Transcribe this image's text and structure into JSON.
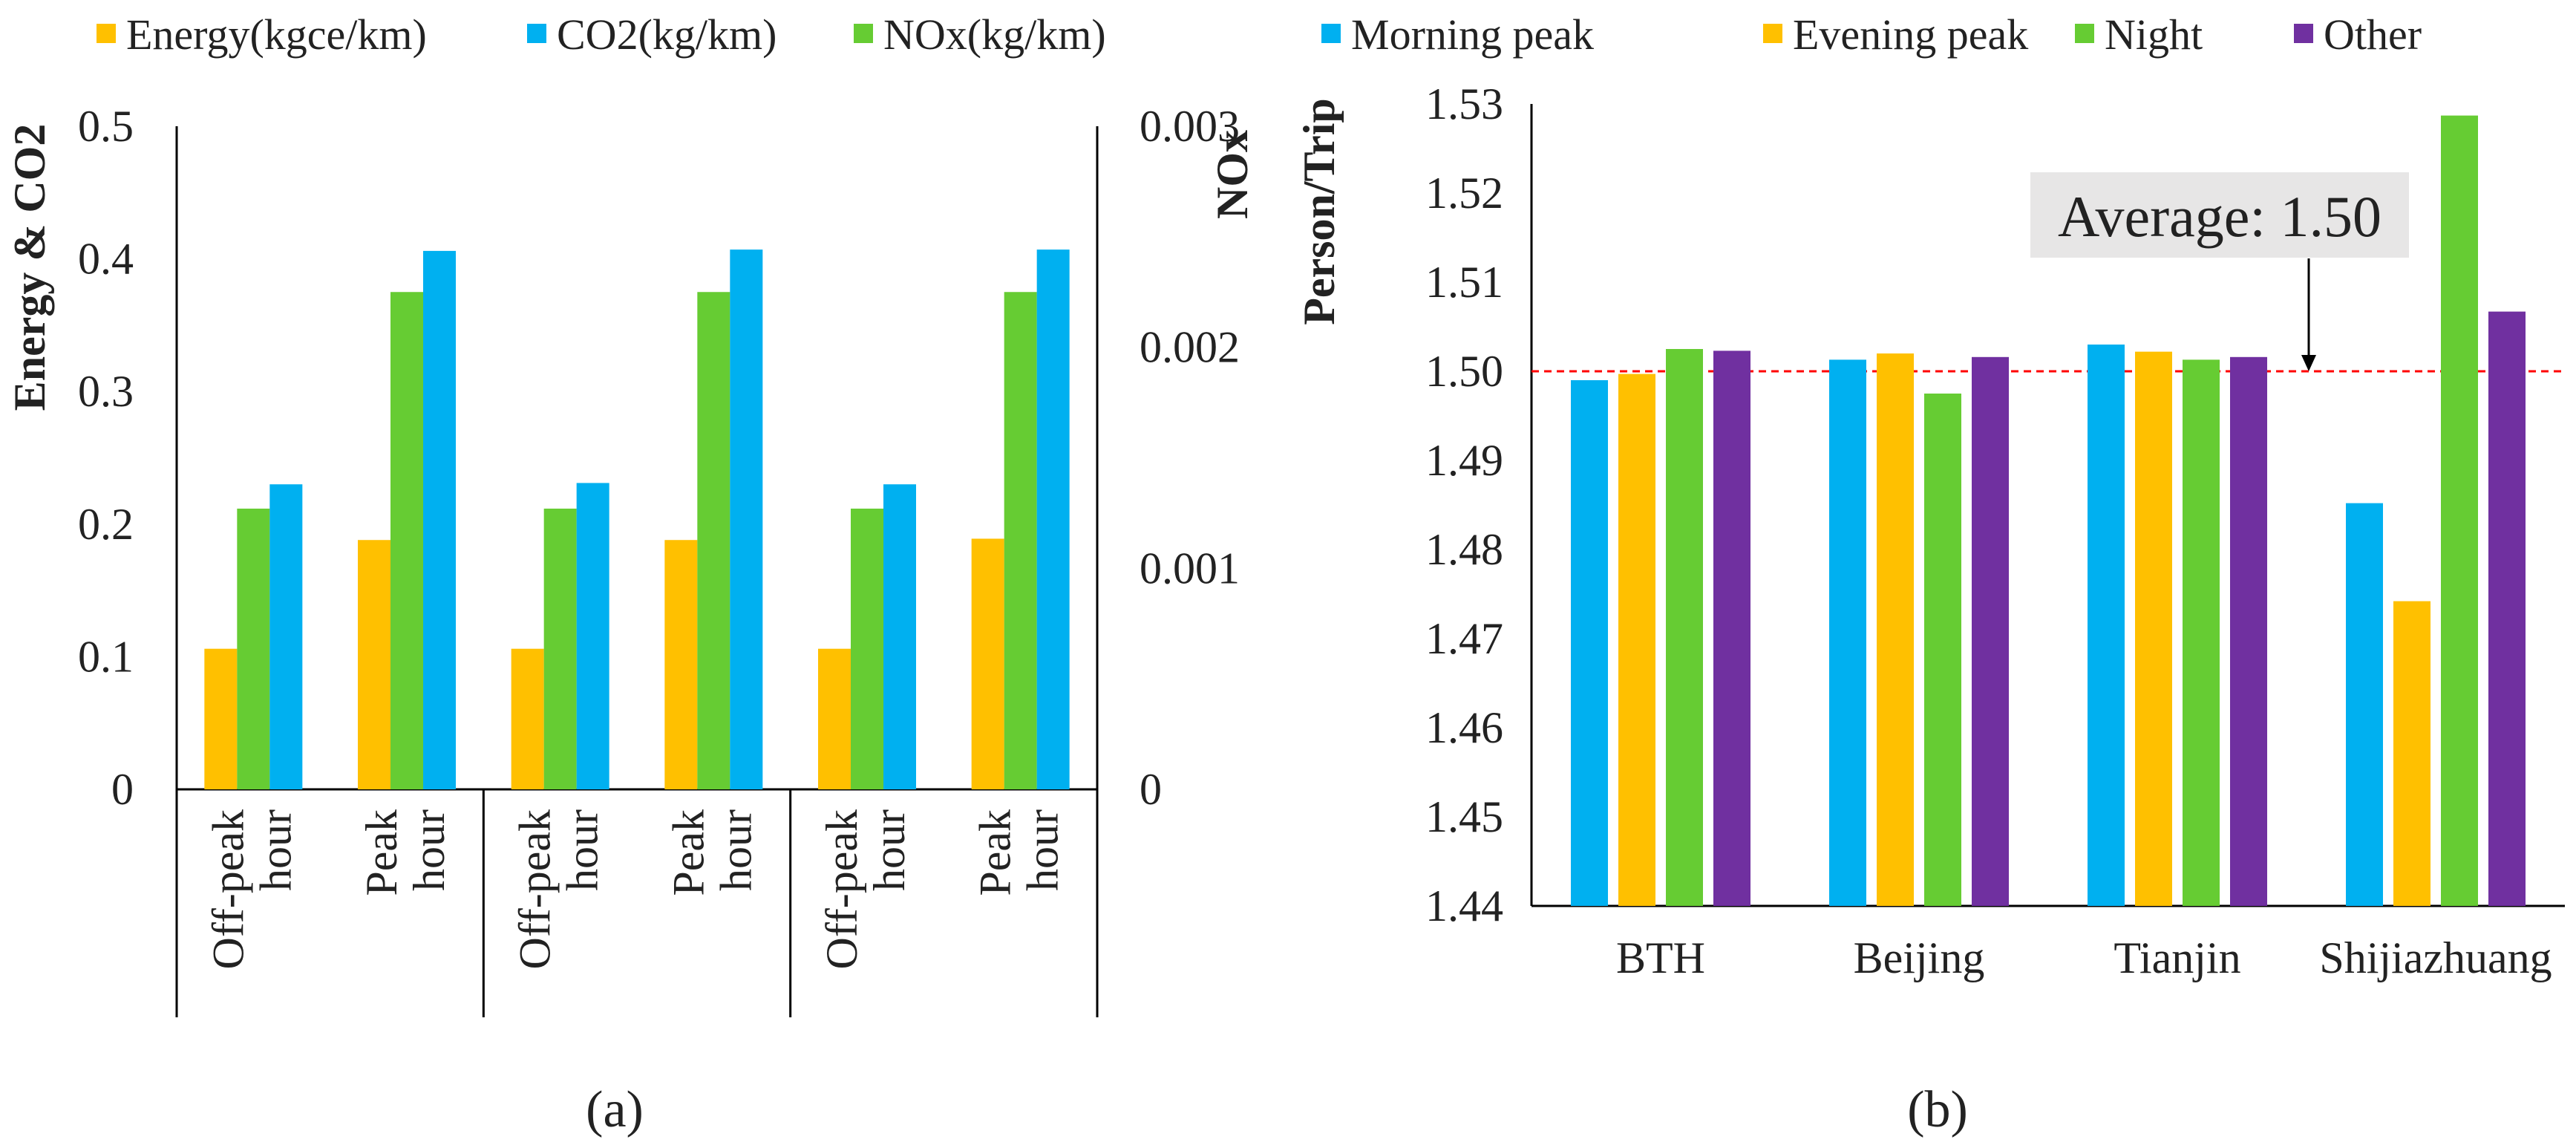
{
  "chart_data": [
    {
      "type": "bar",
      "panel_label": "(a)",
      "ylabel": "Energy & CO2",
      "ylabel_right": "NOx",
      "ylim": [
        0,
        0.5
      ],
      "ylim_right": [
        0,
        0.003
      ],
      "yticks": [
        "0",
        "0.1",
        "0.2",
        "0.3",
        "0.4",
        "0.5"
      ],
      "yticks_right": [
        "0",
        "0.001",
        "0.002",
        "0.003"
      ],
      "categories": [
        [
          "Off-peak",
          "hour"
        ],
        [
          "Peak",
          "hour"
        ],
        [
          "Off-peak",
          "hour"
        ],
        [
          "Peak",
          "hour"
        ],
        [
          "Off-peak",
          "hour"
        ],
        [
          "Peak",
          "hour"
        ]
      ],
      "series": [
        {
          "name": "Energy(kgce/km)",
          "color": "#FFC000",
          "axis": "left",
          "values": [
            0.106,
            0.188,
            0.106,
            0.188,
            0.106,
            0.189
          ]
        },
        {
          "name": "CO2(kg/km)",
          "color": "#00B0F0",
          "axis": "left",
          "values": [
            0.23,
            0.406,
            0.231,
            0.407,
            0.23,
            0.407
          ]
        },
        {
          "name": "NOx(kg/km)",
          "color": "#66CC33",
          "axis": "right",
          "values": [
            0.00127,
            0.00225,
            0.00127,
            0.00225,
            0.00127,
            0.00225
          ]
        }
      ],
      "bar_order": [
        "Energy(kgce/km)",
        "NOx(kg/km)",
        "CO2(kg/km)"
      ],
      "grid": false,
      "legend": "top"
    },
    {
      "type": "bar",
      "panel_label": "(b)",
      "ylabel": "Person/Trip",
      "ylim": [
        1.44,
        1.53
      ],
      "yticks": [
        "1.44",
        "1.45",
        "1.46",
        "1.47",
        "1.48",
        "1.49",
        "1.50",
        "1.51",
        "1.52",
        "1.53"
      ],
      "categories": [
        "BTH",
        "Beijing",
        "Tianjin",
        "Shijiazhuang"
      ],
      "series": [
        {
          "name": "Morning peak",
          "color": "#00B0F0",
          "values": [
            1.499,
            1.5013,
            1.503,
            1.4852
          ]
        },
        {
          "name": "Evening peak",
          "color": "#FFC000",
          "values": [
            1.4997,
            1.502,
            1.5022,
            1.4742
          ]
        },
        {
          "name": "Night",
          "color": "#66CC33",
          "values": [
            1.5025,
            1.4975,
            1.5013,
            1.5287
          ]
        },
        {
          "name": "Other",
          "color": "#7030A0",
          "values": [
            1.5023,
            1.5016,
            1.5016,
            1.5067
          ]
        }
      ],
      "reference_line": {
        "value": 1.5,
        "color": "#FF0000"
      },
      "annotation": "Average: 1.50",
      "grid": false,
      "legend": "top"
    }
  ]
}
